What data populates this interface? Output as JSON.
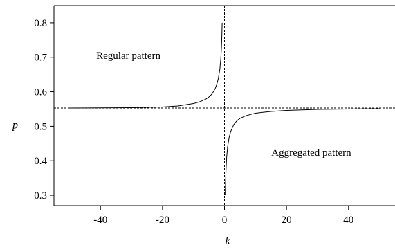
{
  "chart_data": {
    "type": "line",
    "title": "",
    "xlabel": "k",
    "ylabel": "p",
    "xlim": [
      -55,
      55
    ],
    "ylim": [
      0.27,
      0.85
    ],
    "x_ticks": [
      -40,
      -20,
      0,
      20,
      40
    ],
    "y_ticks": [
      0.3,
      0.4,
      0.5,
      0.6,
      0.7,
      0.8
    ],
    "grid": false,
    "reference_lines": {
      "horizontal_dashed_y": 0.553,
      "vertical_dashed_x": 0
    },
    "annotations": [
      {
        "text": "Regular pattern",
        "x": -31,
        "y": 0.695
      },
      {
        "text": "Aggregated pattern",
        "x": 28,
        "y": 0.415
      }
    ],
    "series": [
      {
        "points_left": [
          [
            -50,
            0.553
          ],
          [
            -40,
            0.5535
          ],
          [
            -30,
            0.554
          ],
          [
            -20,
            0.556
          ],
          [
            -15,
            0.559
          ],
          [
            -10,
            0.566
          ],
          [
            -8,
            0.571
          ],
          [
            -6,
            0.579
          ],
          [
            -5,
            0.585
          ],
          [
            -4,
            0.594
          ],
          [
            -3,
            0.609
          ],
          [
            -2.5,
            0.621
          ],
          [
            -2,
            0.638
          ],
          [
            -1.5,
            0.665
          ],
          [
            -1.2,
            0.695
          ],
          [
            -1,
            0.725
          ],
          [
            -0.9,
            0.75
          ],
          [
            -0.8,
            0.78
          ],
          [
            -0.75,
            0.8
          ]
        ],
        "points_right": [
          [
            0.25,
            0.3
          ],
          [
            0.35,
            0.338
          ],
          [
            0.5,
            0.375
          ],
          [
            0.7,
            0.41
          ],
          [
            1,
            0.44
          ],
          [
            1.5,
            0.468
          ],
          [
            2,
            0.485
          ],
          [
            3,
            0.505
          ],
          [
            4,
            0.516
          ],
          [
            5,
            0.523
          ],
          [
            7,
            0.531
          ],
          [
            10,
            0.538
          ],
          [
            15,
            0.543
          ],
          [
            20,
            0.546
          ],
          [
            30,
            0.549
          ],
          [
            40,
            0.55
          ],
          [
            50,
            0.551
          ]
        ]
      }
    ]
  }
}
